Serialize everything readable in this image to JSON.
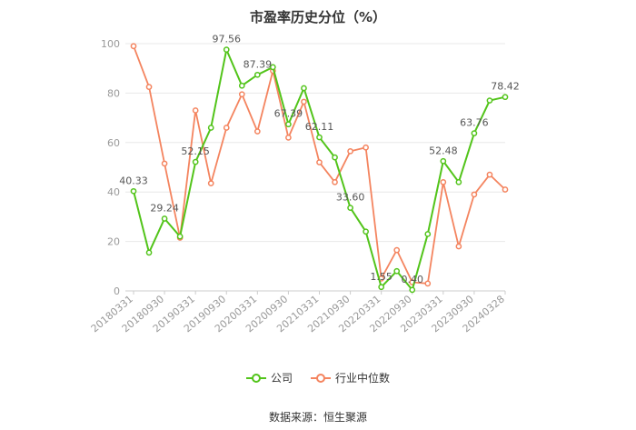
{
  "title": "市盈率历史分位（%）",
  "source_text": "数据来源：恒生聚源",
  "colors": {
    "company": "#52c41a",
    "industry": "#f4845f",
    "grid": "#e8e8e8",
    "axis_text": "#999999",
    "label_text": "#555555"
  },
  "chart_data": {
    "type": "line",
    "title": "市盈率历史分位（%）",
    "x_tick_labels": [
      "20180331",
      "20180930",
      "20190331",
      "20190930",
      "20200331",
      "20200930",
      "20210331",
      "20210930",
      "20220331",
      "20220930",
      "20230331",
      "20230930",
      "20240328"
    ],
    "x": [
      "20180331",
      "20180630",
      "20180930",
      "20181231",
      "20190331",
      "20190630",
      "20190930",
      "20191231",
      "20200331",
      "20200630",
      "20200930",
      "20201231",
      "20210331",
      "20210630",
      "20210930",
      "20211231",
      "20220331",
      "20220630",
      "20220930",
      "20221231",
      "20230331",
      "20230630",
      "20230930",
      "20231231",
      "20240328"
    ],
    "ylim": [
      0,
      100
    ],
    "yticks": [
      0,
      20,
      40,
      60,
      80,
      100
    ],
    "grid": true,
    "legend_position": "bottom",
    "series": [
      {
        "name": "公司",
        "color": "#52c41a",
        "values": [
          40.33,
          15.5,
          29.24,
          22.0,
          52.15,
          66.0,
          97.56,
          83.0,
          87.39,
          90.5,
          67.39,
          82.0,
          62.11,
          54.0,
          33.6,
          24.0,
          1.55,
          8.0,
          0.4,
          23.0,
          52.48,
          44.0,
          63.76,
          77.0,
          78.42
        ],
        "data_labels": [
          {
            "index": 0,
            "text": "40.33"
          },
          {
            "index": 2,
            "text": "29.24"
          },
          {
            "index": 4,
            "text": "52.15"
          },
          {
            "index": 6,
            "text": "97.56"
          },
          {
            "index": 8,
            "text": "87.39"
          },
          {
            "index": 10,
            "text": "67.39"
          },
          {
            "index": 12,
            "text": "62.11"
          },
          {
            "index": 14,
            "text": "33.60"
          },
          {
            "index": 16,
            "text": "1.55"
          },
          {
            "index": 18,
            "text": "0.40"
          },
          {
            "index": 20,
            "text": "52.48"
          },
          {
            "index": 22,
            "text": "63.76"
          },
          {
            "index": 24,
            "text": "78.42"
          }
        ]
      },
      {
        "name": "行业中位数",
        "color": "#f4845f",
        "values": [
          99.0,
          82.5,
          51.5,
          21.5,
          73.0,
          43.5,
          66.0,
          79.5,
          64.5,
          89.0,
          62.0,
          76.5,
          52.0,
          44.0,
          56.5,
          58.0,
          5.0,
          16.5,
          3.5,
          3.0,
          44.0,
          18.0,
          39.0,
          47.0,
          41.0
        ]
      }
    ]
  }
}
